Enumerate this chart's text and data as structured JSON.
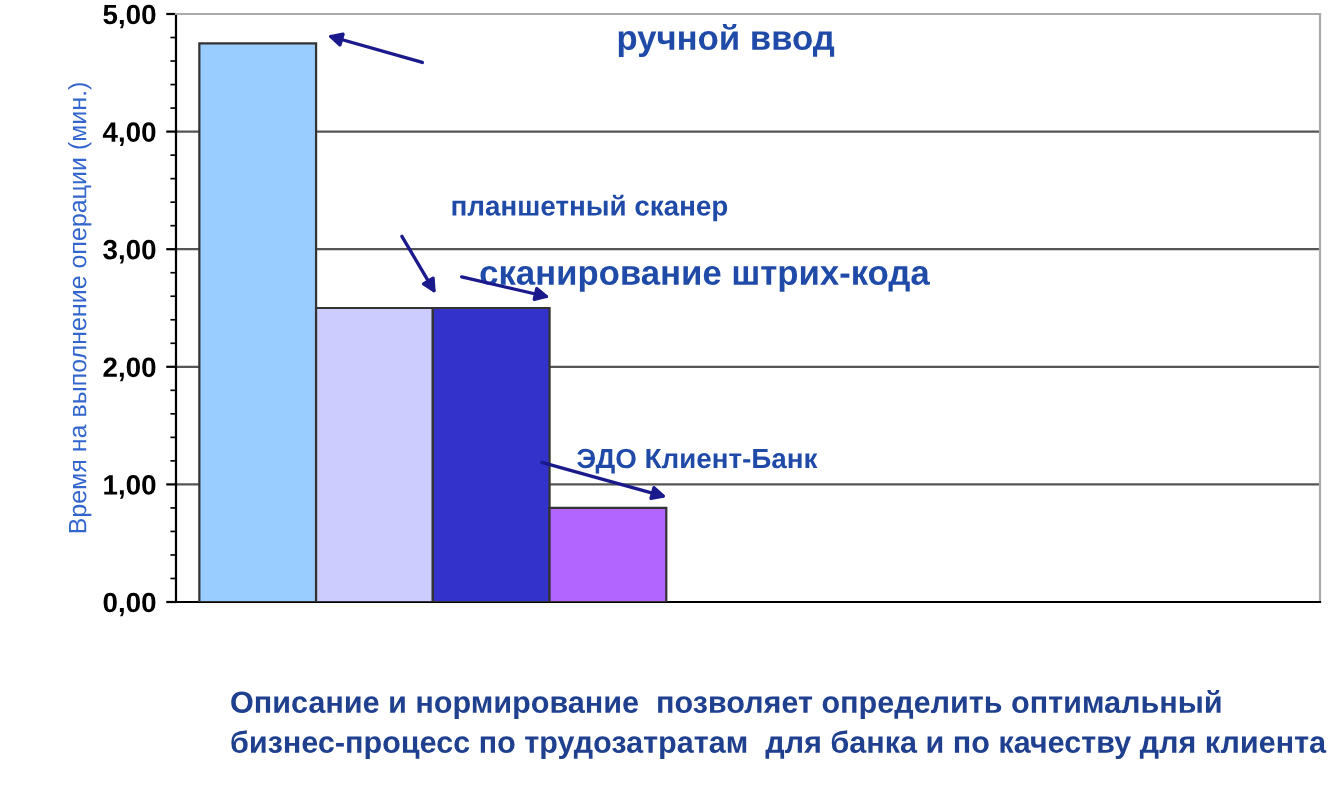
{
  "chart_data": {
    "type": "bar",
    "ylabel": "Время на выполнение операции (мин.)",
    "categories": [
      null,
      null,
      null,
      null
    ],
    "values": [
      4.75,
      2.5,
      2.5,
      0.8
    ],
    "colors": [
      "#99ccff",
      "#ccccff",
      "#3333cc",
      "#b366ff"
    ],
    "ylim": [
      0,
      5
    ],
    "yticks": [
      {
        "value": 0,
        "label": "0,00"
      },
      {
        "value": 1,
        "label": "1,00"
      },
      {
        "value": 2,
        "label": "2,00"
      },
      {
        "value": 3,
        "label": "3,00"
      },
      {
        "value": 4,
        "label": "4,00"
      },
      {
        "value": 5,
        "label": "5,00"
      }
    ],
    "grid": "y",
    "annotations": [
      "ручной ввод",
      "планшетный сканер",
      "сканирование штрих-кода",
      "ЭДО Клиент-Банк",
      "Описание и нормирование  позволяет определить оптимальный  бизнес-процесс по трудозатратам  для банка и по качеству для клиента"
    ]
  }
}
